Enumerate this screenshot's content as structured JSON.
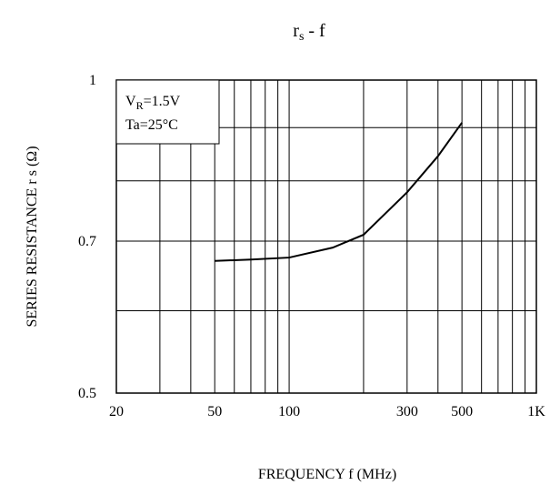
{
  "chart_data": {
    "type": "line",
    "title": {
      "main": "r",
      "sub": "s",
      "rest": " -  f"
    },
    "x_label": "FREQUENCY  f  (MHz)",
    "y_label": "SERIES RESISTANCE r s (Ω)",
    "legend_text": {
      "line1": {
        "main": "V",
        "sub": "R",
        "rest": "=1.5V"
      },
      "line2": "Ta=25°C"
    },
    "x": [
      50,
      70,
      100,
      150,
      200,
      300,
      400,
      500
    ],
    "series": [
      {
        "color": "#000000",
        "values": [
          0.67,
          0.672,
          0.675,
          0.69,
          0.71,
          0.78,
          0.845,
          0.91
        ]
      }
    ],
    "xlim": [
      20,
      1000
    ],
    "ylim": [
      0.5,
      1
    ],
    "xscale": "log",
    "yscale": "log",
    "xticks": [
      20,
      50,
      100,
      300,
      500,
      {
        "value": 1000,
        "label": "1K"
      }
    ],
    "yticks": [
      1,
      0.7,
      0.5
    ],
    "xgrid": [
      30,
      40,
      60,
      70,
      80,
      90,
      200,
      400,
      600,
      700,
      800,
      900
    ],
    "ygrid": [
      0.6,
      0.8,
      0.9
    ],
    "grid": true
  }
}
